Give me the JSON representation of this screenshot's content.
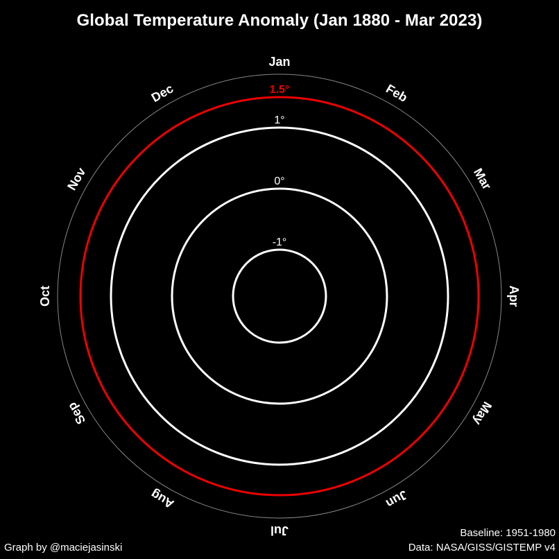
{
  "chart_data": {
    "type": "polar-line",
    "title": "Global Temperature Anomaly (Jan 1880 - Mar 2023)",
    "months": [
      "Jan",
      "Feb",
      "Mar",
      "Apr",
      "May",
      "Jun",
      "Jul",
      "Aug",
      "Sep",
      "Oct",
      "Nov",
      "Dec"
    ],
    "rings": [
      {
        "value": -1,
        "label": "-1°",
        "color": "#ffffff"
      },
      {
        "value": 0,
        "label": "0°",
        "color": "#ffffff"
      },
      {
        "value": 1,
        "label": "1°",
        "color": "#ffffff"
      },
      {
        "value": 1.5,
        "label": "1.5°",
        "color": "#ee0000"
      }
    ],
    "outer_boundary_color": "#888888",
    "background_color": "#000000",
    "series": []
  },
  "footer": {
    "credit": "Graph by @maciejasinski",
    "baseline": "Baseline: 1951-1980",
    "source": "Data: NASA/GISS/GISTEMP v4"
  }
}
